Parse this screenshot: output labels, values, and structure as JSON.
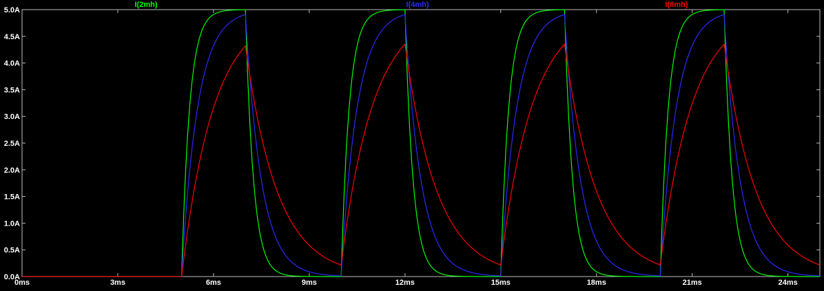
{
  "colors": {
    "background": "#000000",
    "plot_border": "#bebebe",
    "axis_text": "#ffffff"
  },
  "chart_data": {
    "type": "line",
    "title": "",
    "legend_position": "top",
    "grid": false,
    "x_axis": {
      "unit": "ms",
      "min_ms": 0,
      "max_ms": 25,
      "tick_interval_ms": 3,
      "tick_labels": [
        "0ms",
        "3ms",
        "6ms",
        "9ms",
        "12ms",
        "15ms",
        "18ms",
        "21ms",
        "24ms"
      ]
    },
    "y_axis": {
      "unit": "A",
      "min_A": 0,
      "max_A": 5,
      "tick_interval_A": 0.5,
      "tick_labels": [
        "0.0A",
        "0.5A",
        "1.0A",
        "1.5A",
        "2.0A",
        "2.5A",
        "3.0A",
        "3.5A",
        "4.0A",
        "4.5A",
        "5.0A"
      ]
    },
    "series": [
      {
        "name": "I(2mh)",
        "color": "#00ff00",
        "tau_ms": 0.25,
        "peak_A": 5.0,
        "legend_x_frac": 0.177
      },
      {
        "name": "I(4mh)",
        "color": "#2a2aff",
        "tau_ms": 0.5,
        "peak_A": 4.91,
        "legend_x_frac": 0.507
      },
      {
        "name": "I(8mh)",
        "color": "#ff0000",
        "tau_ms": 1.0,
        "peak_A": 4.35,
        "legend_x_frac": 0.821
      }
    ],
    "model": {
      "kind": "switched RL inductor-current exponential (shared source/resistor)",
      "amplitude_A": 5,
      "pulse_start_ms": 5,
      "pulse_on_ms": 2,
      "period_ms": 5,
      "sim_end_ms": 25,
      "sample_step_ms": 0.02
    }
  }
}
